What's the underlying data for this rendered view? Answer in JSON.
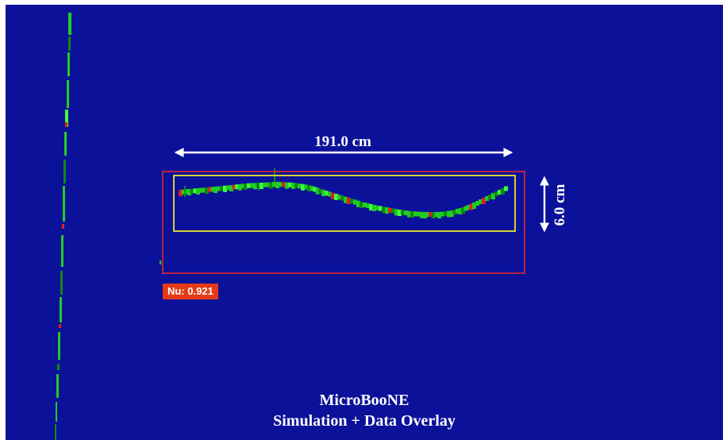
{
  "image": {
    "background_color": "#0b1199",
    "track_colors": [
      "#22cc22",
      "#0f8a0f",
      "#3dff3d",
      "#e02020"
    ]
  },
  "annotations": {
    "length_label": "191.0 cm",
    "height_label": "6.0 cm",
    "score_label": "Nu: 0.921",
    "outer_box_color": "#e02a2a",
    "inner_box_color": "#e8e82a",
    "arrow_color": "#ffffff",
    "badge_color": "#e53a15"
  },
  "caption": {
    "line1": "MicroBooNE",
    "line2": "Simulation + Data Overlay"
  }
}
